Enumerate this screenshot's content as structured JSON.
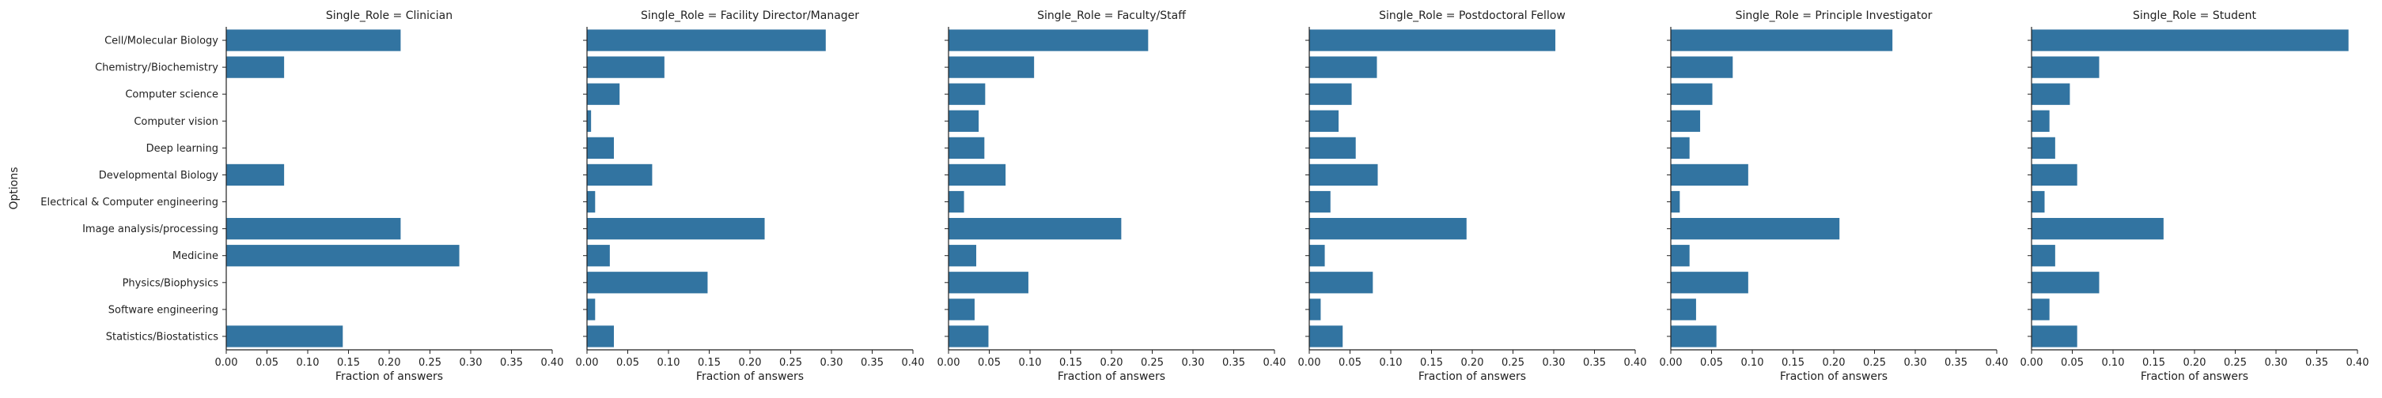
{
  "chart_data": {
    "type": "bar",
    "orientation": "horizontal",
    "facet_variable": "Single_Role",
    "ylabel": "Options",
    "xlabel": "Fraction of answers",
    "xlim": [
      0,
      0.4
    ],
    "xticks": [
      "0.00",
      "0.05",
      "0.10",
      "0.15",
      "0.20",
      "0.25",
      "0.30",
      "0.35",
      "0.40"
    ],
    "categories": [
      "Cell/Molecular Biology",
      "Chemistry/Biochemistry",
      "Computer science",
      "Computer vision",
      "Deep learning",
      "Developmental Biology",
      "Electrical & Computer engineering",
      "Image analysis/processing",
      "Medicine",
      "Physics/Biophysics",
      "Software engineering",
      "Statistics/Biostatistics"
    ],
    "bar_color": "#3274a1",
    "grid": false,
    "facets": [
      {
        "title": "Single_Role = Clinician",
        "values": [
          0.214,
          0.071,
          0,
          0,
          0,
          0.071,
          0,
          0.214,
          0.286,
          0,
          0,
          0.143
        ]
      },
      {
        "title": "Single_Role = Facility Director/Manager",
        "values": [
          0.293,
          0.095,
          0.04,
          0.005,
          0.033,
          0.08,
          0.01,
          0.218,
          0.028,
          0.148,
          0.01,
          0.033
        ]
      },
      {
        "title": "Single_Role = Faculty/Staff",
        "values": [
          0.245,
          0.105,
          0.045,
          0.037,
          0.044,
          0.07,
          0.019,
          0.212,
          0.034,
          0.098,
          0.032,
          0.049
        ]
      },
      {
        "title": "Single_Role = Postdoctoral Fellow",
        "values": [
          0.302,
          0.083,
          0.052,
          0.036,
          0.057,
          0.084,
          0.026,
          0.193,
          0.019,
          0.078,
          0.014,
          0.041
        ]
      },
      {
        "title": "Single_Role = Principle Investigator",
        "values": [
          0.272,
          0.076,
          0.051,
          0.036,
          0.023,
          0.095,
          0.011,
          0.207,
          0.023,
          0.095,
          0.031,
          0.056
        ]
      },
      {
        "title": "Single_Role = Student",
        "values": [
          0.389,
          0.083,
          0.047,
          0.022,
          0.029,
          0.056,
          0.016,
          0.162,
          0.029,
          0.083,
          0.022,
          0.056
        ]
      }
    ]
  }
}
